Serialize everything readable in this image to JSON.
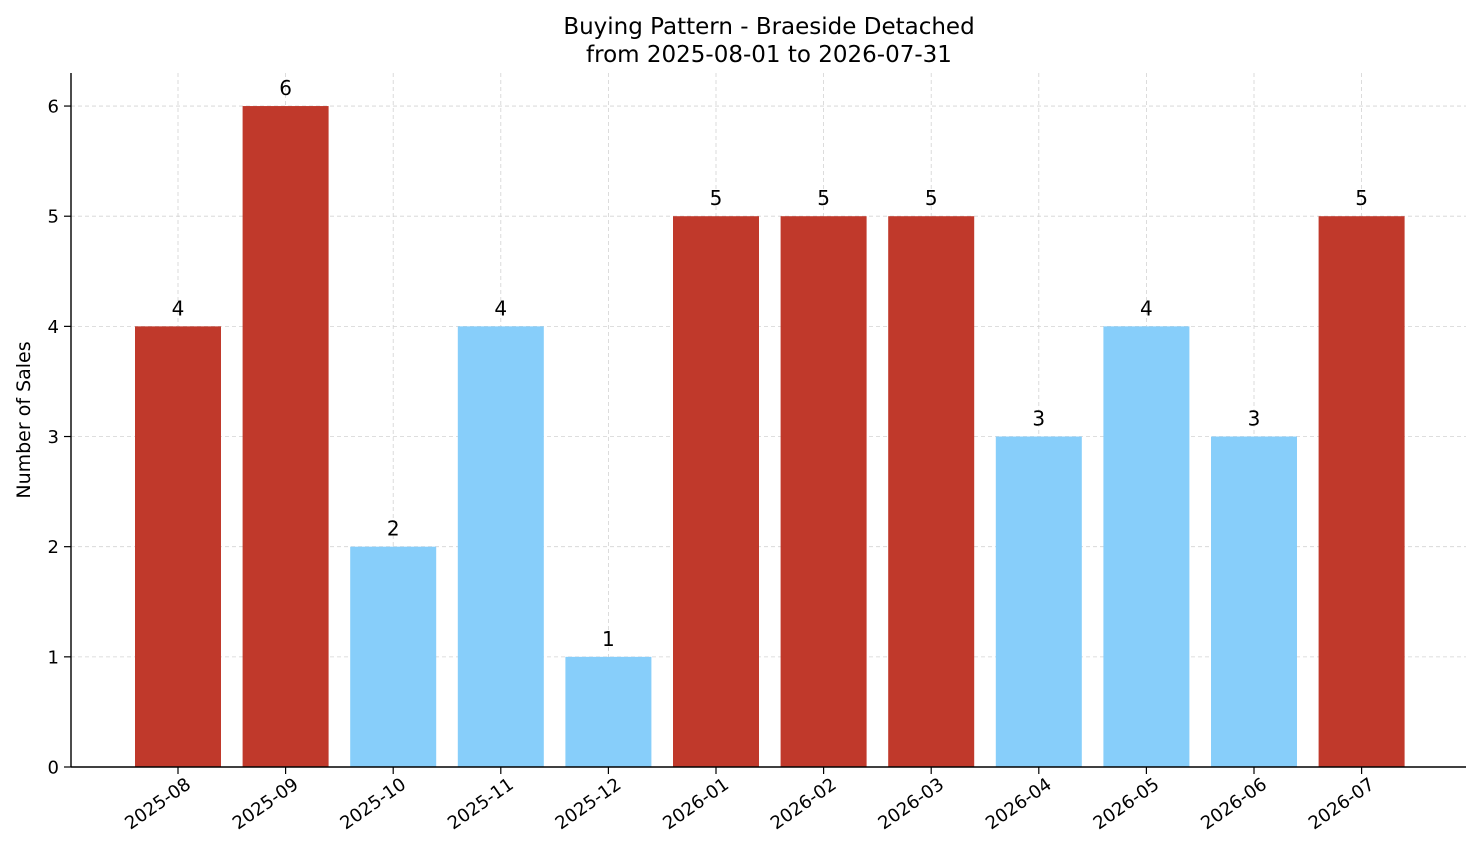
{
  "chart_data": {
    "type": "bar",
    "title": "Buying Pattern - Braeside Detached",
    "subtitle": "from 2025-08-01 to 2026-07-31",
    "xlabel": "",
    "ylabel": "Number of Sales",
    "categories": [
      "2025-08",
      "2025-09",
      "2025-10",
      "2025-11",
      "2025-12",
      "2026-01",
      "2026-02",
      "2026-03",
      "2026-04",
      "2026-05",
      "2026-06",
      "2026-07"
    ],
    "values": [
      4,
      6,
      2,
      4,
      1,
      5,
      5,
      5,
      3,
      4,
      3,
      5
    ],
    "bar_colors": [
      "#c0392b",
      "#c0392b",
      "#87cefa",
      "#87cefa",
      "#87cefa",
      "#c0392b",
      "#c0392b",
      "#c0392b",
      "#87cefa",
      "#87cefa",
      "#87cefa",
      "#c0392b"
    ],
    "ylim": [
      0,
      6.3
    ],
    "yticks": [
      0,
      1,
      2,
      3,
      4,
      5,
      6
    ],
    "grid": true,
    "data_labels": true,
    "colors": {
      "high": "#c0392b",
      "low": "#87cefa",
      "grid": "#d3d3d3",
      "axis": "#000000"
    }
  }
}
